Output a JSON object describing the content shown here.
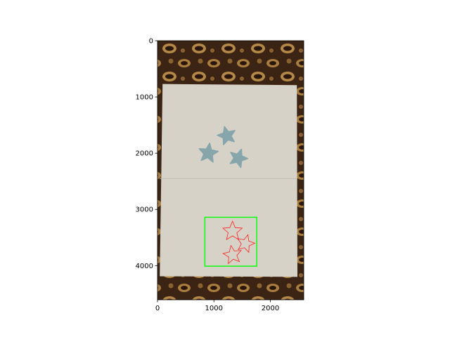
{
  "chart_data": {
    "type": "image",
    "title": "",
    "xlabel": "",
    "ylabel": "",
    "xlim": [
      0,
      2592
    ],
    "ylim": [
      4608,
      0
    ],
    "x_ticks": [
      0,
      1000,
      2000
    ],
    "x_tick_labels": [
      "0",
      "1000",
      "2000"
    ],
    "y_ticks": [
      0,
      1000,
      2000,
      3000,
      4000
    ],
    "y_tick_labels": [
      "0",
      "1000",
      "2000",
      "3000",
      "4000"
    ],
    "grid": false,
    "legend": "none",
    "scene": {
      "paper_corners": [
        [
          90,
          770
        ],
        [
          2470,
          790
        ],
        [
          2480,
          4200
        ],
        [
          40,
          4190
        ]
      ],
      "fold_line_y": 2450,
      "stars": [
        {
          "cx": 1230,
          "cy": 1690,
          "r": 170,
          "rotation": -15
        },
        {
          "cx": 900,
          "cy": 2000,
          "r": 180,
          "rotation": 8
        },
        {
          "cx": 1430,
          "cy": 2090,
          "r": 170,
          "rotation": 20
        }
      ],
      "detection_box": {
        "x0": 840,
        "y0": 3140,
        "x1": 1760,
        "y1": 4010,
        "color": "#00ff00"
      },
      "detected_star_outlines": [
        {
          "cx": 1330,
          "cy": 3390,
          "r": 180,
          "rotation": 0
        },
        {
          "cx": 1560,
          "cy": 3610,
          "r": 165,
          "rotation": 15
        },
        {
          "cx": 1330,
          "cy": 3810,
          "r": 170,
          "rotation": -10
        }
      ],
      "outline_color": "#ff2020"
    }
  }
}
